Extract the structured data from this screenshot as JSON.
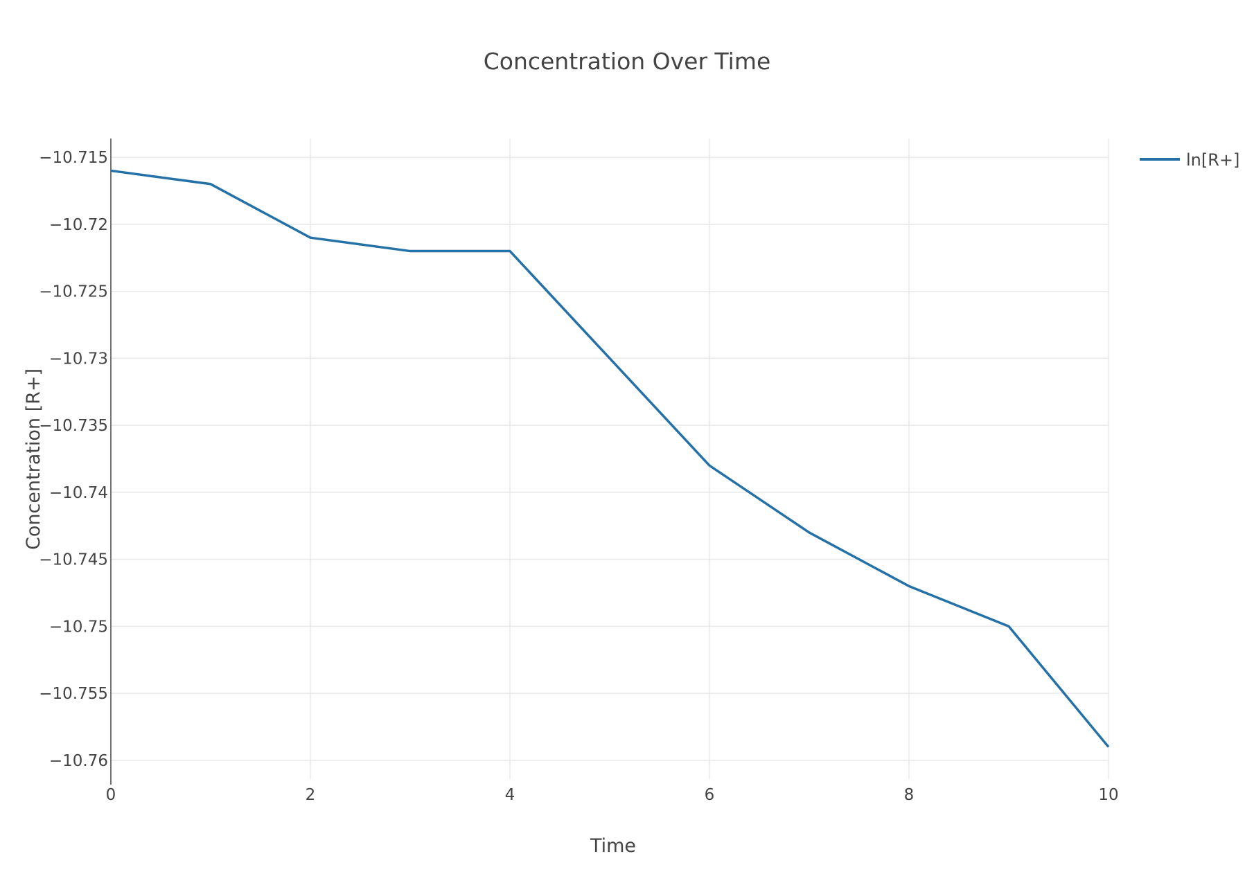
{
  "chart_data": {
    "type": "line",
    "title": "Concentration Over Time",
    "xlabel": "Time",
    "ylabel": "Concentration [R+]",
    "xlim": [
      0,
      10
    ],
    "ylim": [
      -10.7614,
      -10.7136
    ],
    "x_ticks": [
      0,
      2,
      4,
      6,
      8,
      10
    ],
    "x_tick_labels": [
      "0",
      "2",
      "4",
      "6",
      "8",
      "10"
    ],
    "y_ticks": [
      -10.715,
      -10.72,
      -10.725,
      -10.73,
      -10.735,
      -10.74,
      -10.745,
      -10.75,
      -10.755,
      -10.76
    ],
    "y_tick_labels": [
      "−10.715",
      "−10.72",
      "−10.725",
      "−10.73",
      "−10.735",
      "−10.74",
      "−10.745",
      "−10.75",
      "−10.755",
      "−10.76"
    ],
    "grid": true,
    "legend_position": "top-right",
    "series": [
      {
        "name": "ln[R+]",
        "color": "#2471a8",
        "x": [
          0,
          1,
          2,
          3,
          4,
          5,
          6,
          7,
          8,
          9,
          10
        ],
        "y": [
          -10.716,
          -10.717,
          -10.721,
          -10.722,
          -10.722,
          -10.73,
          -10.738,
          -10.743,
          -10.747,
          -10.75,
          -10.759
        ]
      }
    ]
  }
}
